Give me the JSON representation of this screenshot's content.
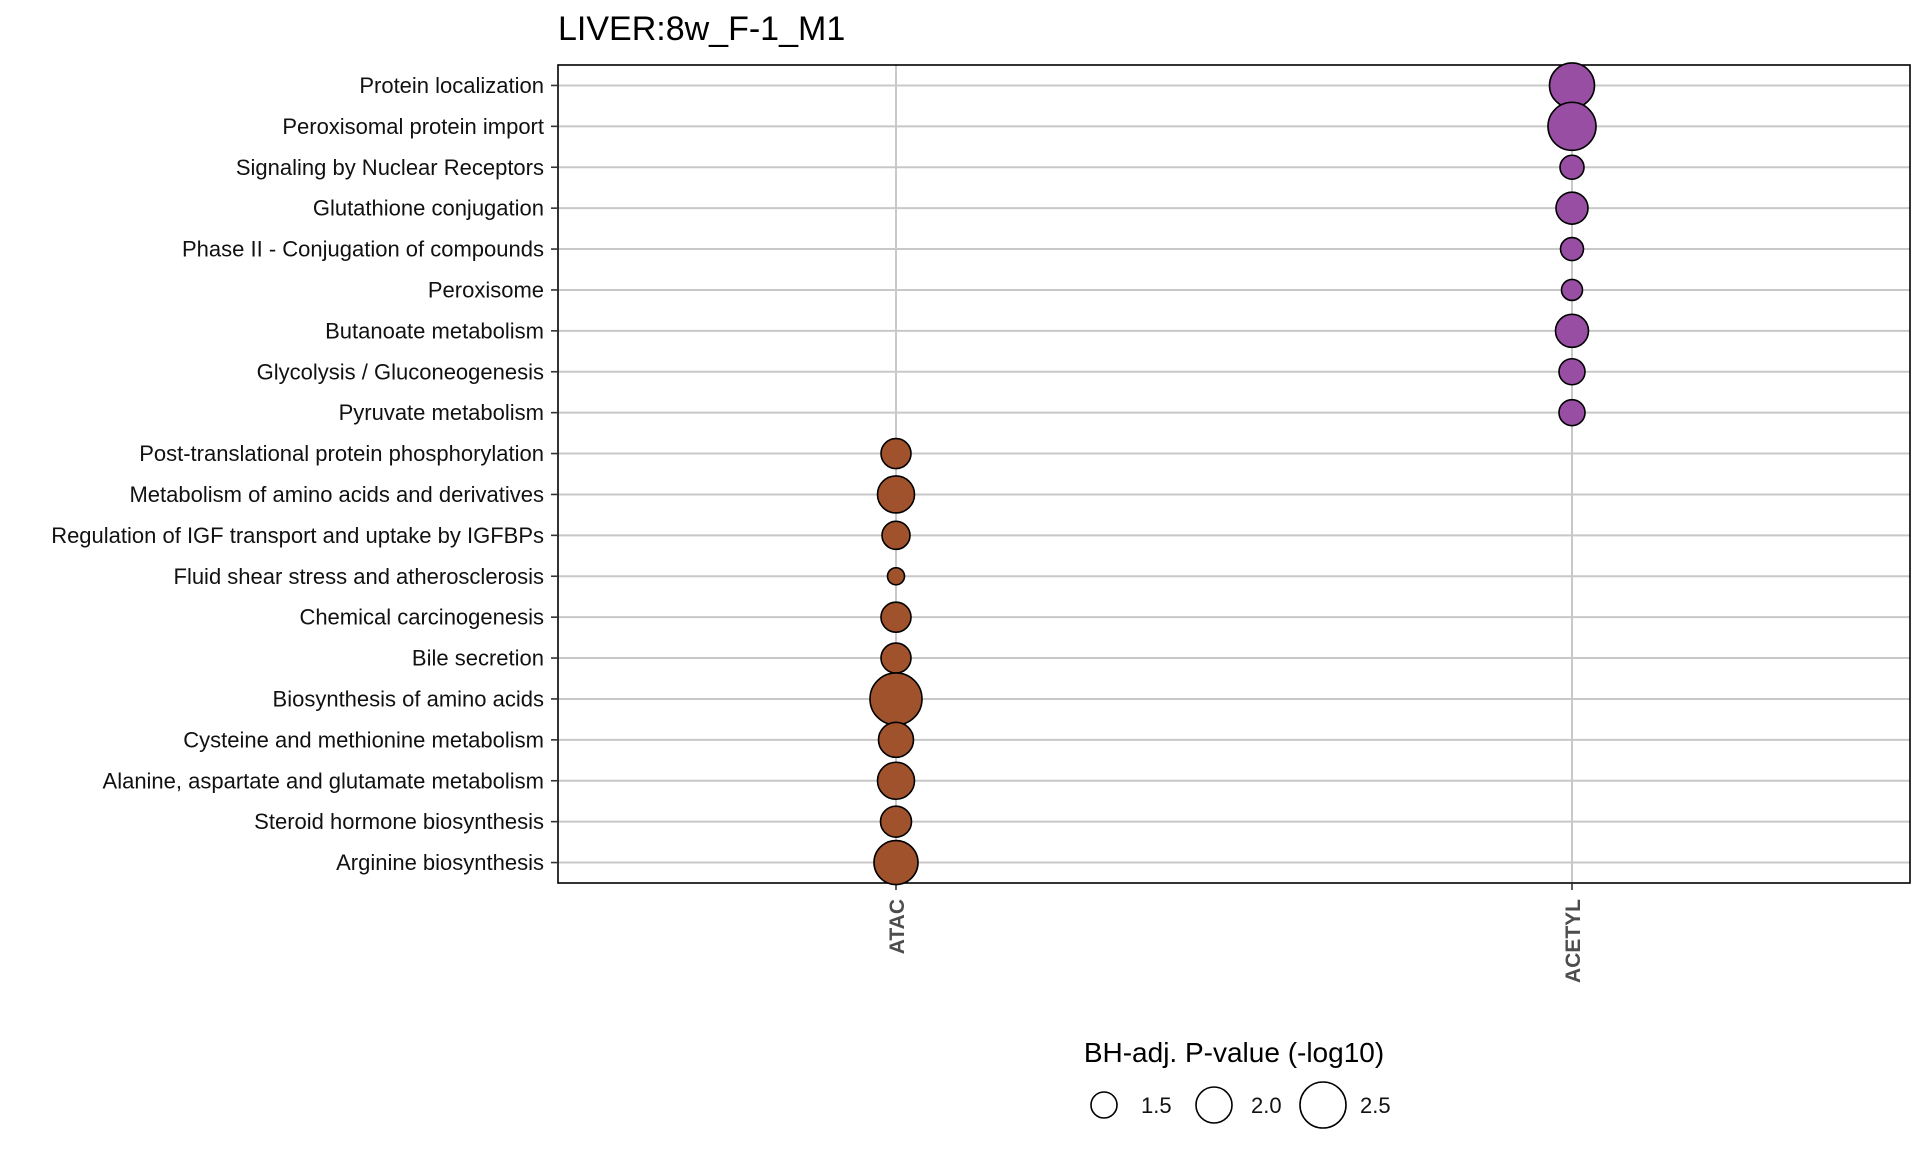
{
  "chart_data": {
    "type": "scatter",
    "title": "LIVER:8w_F-1_M1",
    "x_categories": [
      "ATAC",
      "ACETYL"
    ],
    "y_categories": [
      "Protein localization",
      "Peroxisomal protein import",
      "Signaling by Nuclear Receptors",
      "Glutathione conjugation",
      "Phase II - Conjugation of compounds",
      "Peroxisome",
      "Butanoate metabolism",
      "Glycolysis / Gluconeogenesis",
      "Pyruvate metabolism",
      "Post-translational protein phosphorylation",
      "Metabolism of amino acids and derivatives",
      "Regulation of IGF transport and uptake by IGFBPs",
      "Fluid shear stress and atherosclerosis",
      "Chemical carcinogenesis",
      "Bile secretion",
      "Biosynthesis of amino acids",
      "Cysteine and methionine metabolism",
      "Alanine, aspartate and glutamate metabolism",
      "Steroid hormone biosynthesis",
      "Arginine biosynthesis"
    ],
    "points": [
      {
        "x": "ACETYL",
        "y": "Protein localization",
        "size": 2.45
      },
      {
        "x": "ACETYL",
        "y": "Peroxisomal protein import",
        "size": 2.6
      },
      {
        "x": "ACETYL",
        "y": "Signaling by Nuclear Receptors",
        "size": 1.4
      },
      {
        "x": "ACETYL",
        "y": "Glutathione conjugation",
        "size": 1.8
      },
      {
        "x": "ACETYL",
        "y": "Phase II - Conjugation of compounds",
        "size": 1.35
      },
      {
        "x": "ACETYL",
        "y": "Peroxisome",
        "size": 1.25
      },
      {
        "x": "ACETYL",
        "y": "Butanoate metabolism",
        "size": 1.85
      },
      {
        "x": "ACETYL",
        "y": "Glycolysis / Gluconeogenesis",
        "size": 1.5
      },
      {
        "x": "ACETYL",
        "y": "Pyruvate metabolism",
        "size": 1.5
      },
      {
        "x": "ATAC",
        "y": "Post-translational protein phosphorylation",
        "size": 1.7
      },
      {
        "x": "ATAC",
        "y": "Metabolism of amino acids and derivatives",
        "size": 2.05
      },
      {
        "x": "ATAC",
        "y": "Regulation of IGF transport and uptake by IGFBPs",
        "size": 1.6
      },
      {
        "x": "ATAC",
        "y": "Fluid shear stress and atherosclerosis",
        "size": 1.05
      },
      {
        "x": "ATAC",
        "y": "Chemical carcinogenesis",
        "size": 1.7
      },
      {
        "x": "ATAC",
        "y": "Bile secretion",
        "size": 1.7
      },
      {
        "x": "ATAC",
        "y": "Biosynthesis of amino acids",
        "size": 2.8
      },
      {
        "x": "ATAC",
        "y": "Cysteine and methionine metabolism",
        "size": 1.95
      },
      {
        "x": "ATAC",
        "y": "Alanine, aspartate and glutamate metabolism",
        "size": 2.05
      },
      {
        "x": "ATAC",
        "y": "Steroid hormone biosynthesis",
        "size": 1.75
      },
      {
        "x": "ATAC",
        "y": "Arginine biosynthesis",
        "size": 2.4
      }
    ],
    "colors": {
      "ATAC": "#a0522d",
      "ACETYL": "#984ea3"
    },
    "legend": {
      "title": "BH-adj. P-value (-log10)",
      "values": [
        1.5,
        2.0,
        2.5
      ],
      "labels": [
        "1.5",
        "2.0",
        "2.5"
      ],
      "placement": "bottom"
    },
    "grid": true
  }
}
